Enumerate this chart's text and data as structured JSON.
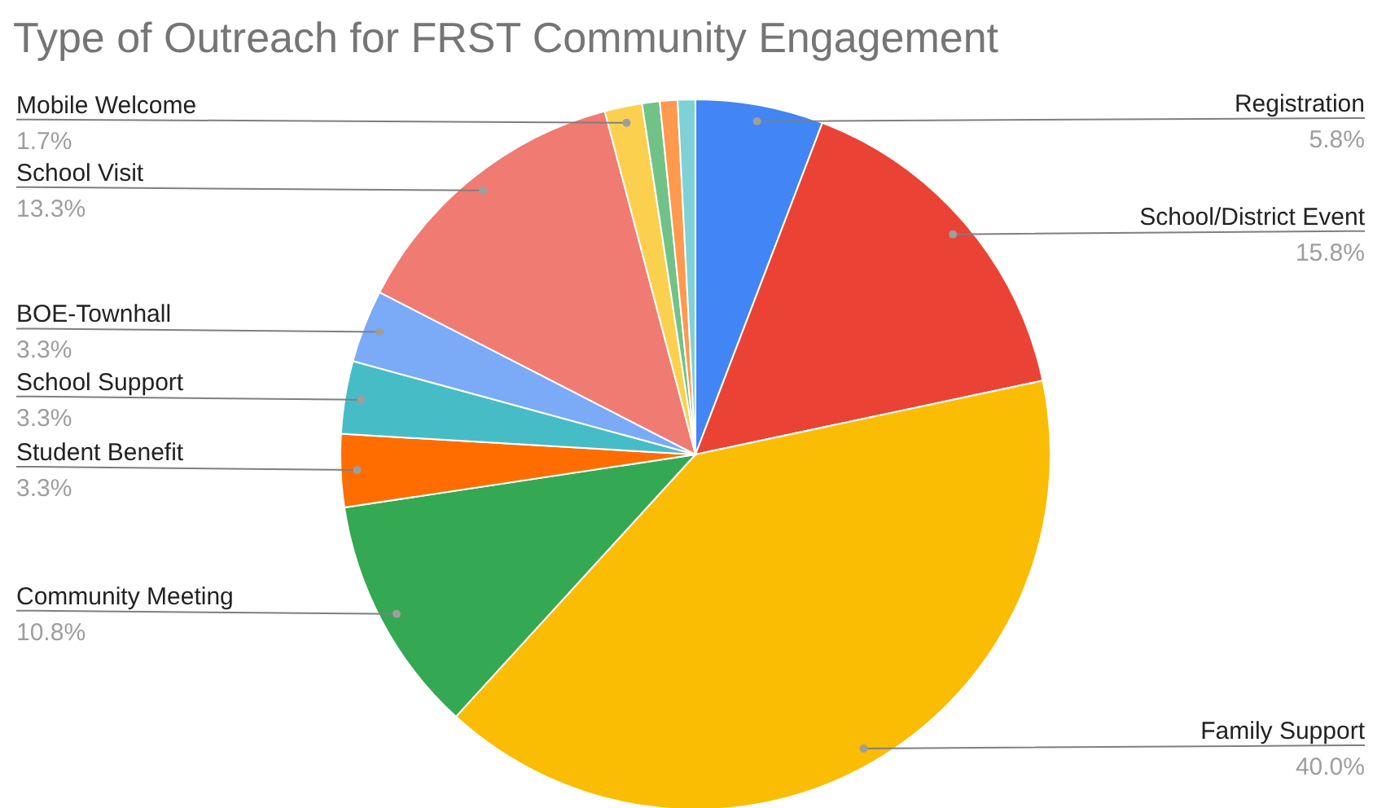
{
  "chart_data": {
    "type": "pie",
    "title": "Type of Outreach for FRST Community Engagement",
    "categories": [
      "Registration",
      "School/District Event",
      "Family Support",
      "Community Meeting",
      "Student Benefit",
      "School Support",
      "BOE-Townhall",
      "School Visit",
      "Mobile Welcome",
      null,
      null,
      null
    ],
    "values": [
      5.8,
      15.8,
      40.0,
      10.8,
      3.3,
      3.3,
      3.3,
      13.3,
      1.7,
      0.8,
      0.8,
      0.8
    ],
    "value_labels": [
      "5.8%",
      "15.8%",
      "40.0%",
      "10.8%",
      "3.3%",
      "3.3%",
      "3.3%",
      "13.3%",
      "1.7%",
      null,
      null,
      null
    ],
    "colors": [
      "#4285f4",
      "#ea4335",
      "#fbbc04",
      "#34a853",
      "#ff6d01",
      "#46bdc6",
      "#7baaf7",
      "#f07b72",
      "#fcd04f",
      "#71c287",
      "#ff994d",
      "#7ed1d7"
    ],
    "legend": false
  }
}
